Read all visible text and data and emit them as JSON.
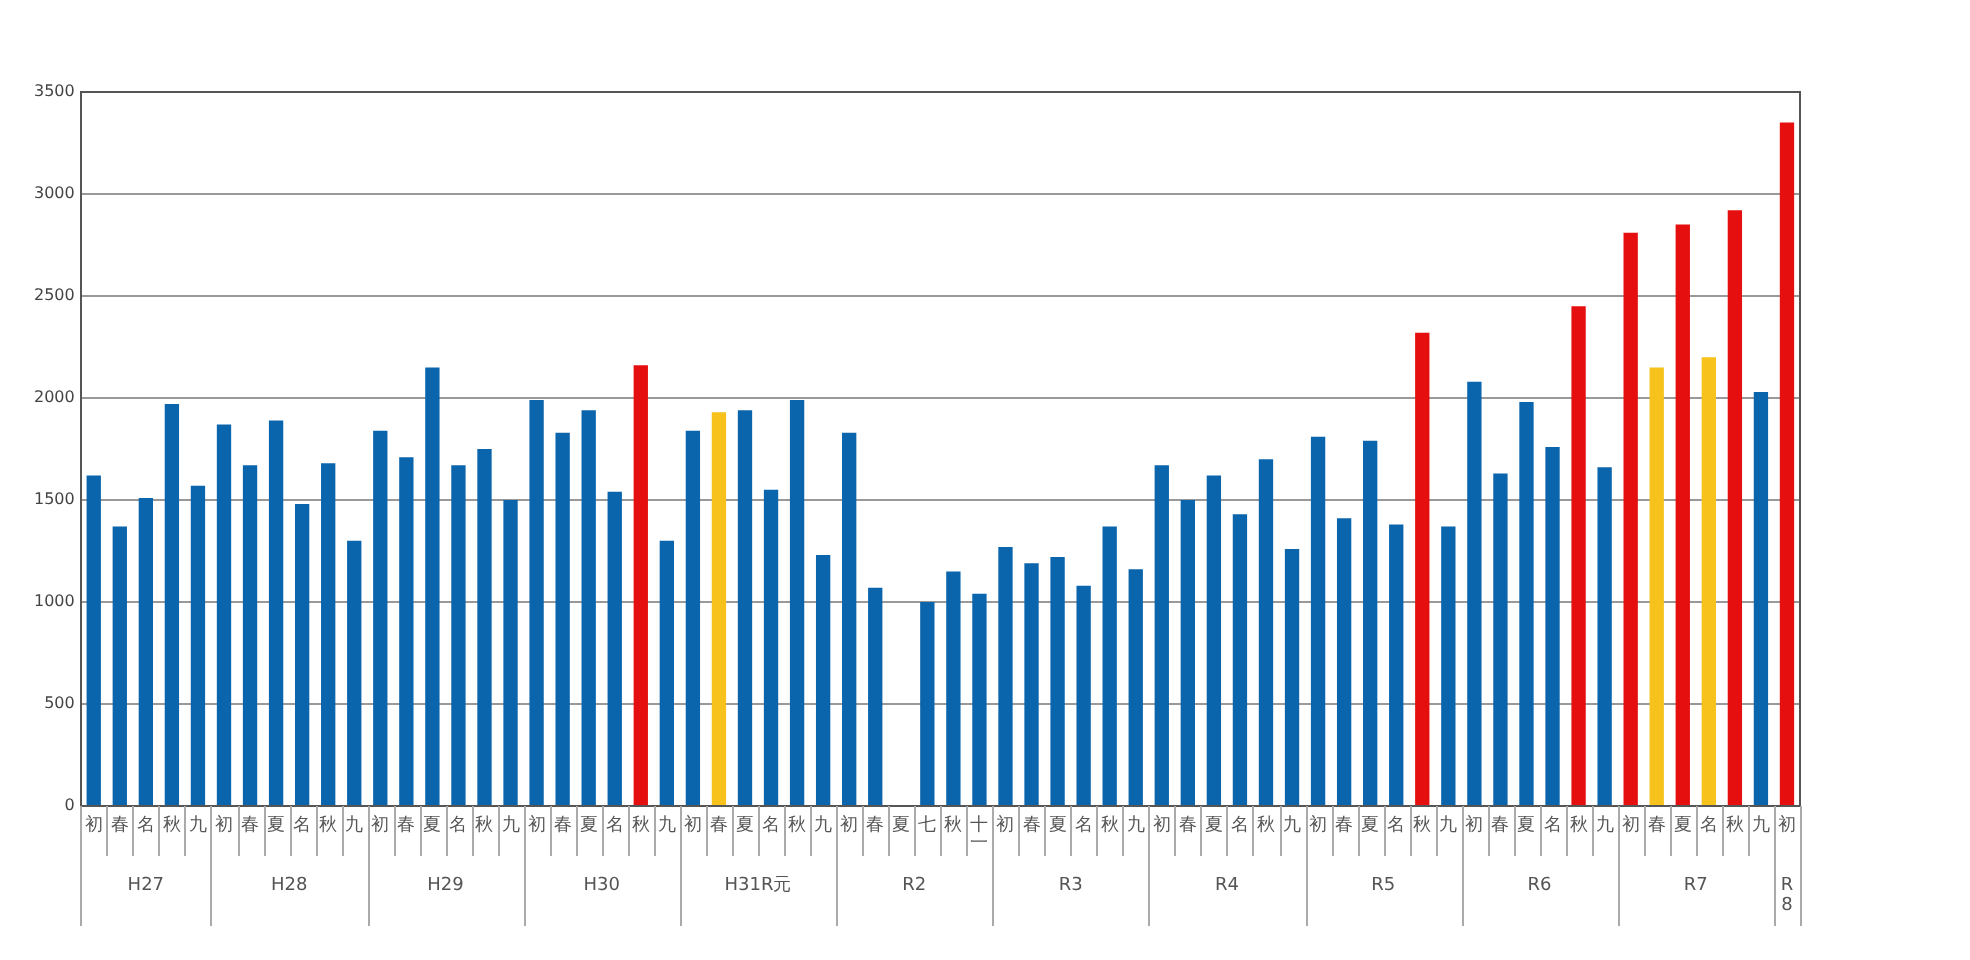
{
  "chart_data": {
    "type": "bar",
    "categories": [
      "初",
      "春",
      "名",
      "秋",
      "九",
      "初",
      "春",
      "夏",
      "名",
      "秋",
      "九",
      "初",
      "春",
      "夏",
      "名",
      "秋",
      "九",
      "初",
      "春",
      "夏",
      "名",
      "秋",
      "九",
      "初",
      "春",
      "夏",
      "名",
      "秋",
      "九",
      "初",
      "春",
      "夏",
      "七",
      "秋",
      "十一",
      "初",
      "春",
      "夏",
      "名",
      "秋",
      "九",
      "初",
      "春",
      "夏",
      "名",
      "秋",
      "九",
      "初",
      "春",
      "夏",
      "名",
      "秋",
      "九",
      "初",
      "春",
      "夏",
      "名",
      "秋",
      "九",
      "初",
      "春",
      "夏",
      "名",
      "秋",
      "九",
      "初"
    ],
    "values": [
      1620,
      1370,
      1510,
      1970,
      1570,
      1870,
      1670,
      1890,
      1480,
      1680,
      1300,
      1840,
      1710,
      2150,
      1670,
      1750,
      1500,
      1990,
      1830,
      1940,
      1540,
      2160,
      1300,
      1840,
      1930,
      1940,
      1550,
      1990,
      1230,
      1830,
      1070,
      null,
      1000,
      1150,
      1040,
      1270,
      1190,
      1220,
      1080,
      1370,
      1160,
      1670,
      1500,
      1620,
      1430,
      1700,
      1260,
      1810,
      1410,
      1790,
      1380,
      2320,
      1370,
      2080,
      1630,
      1980,
      1760,
      2450,
      1660,
      2810,
      2150,
      2850,
      2200,
      2920,
      2030,
      3350
    ],
    "colors": [
      "#0b65ad",
      "#0b65ad",
      "#0b65ad",
      "#0b65ad",
      "#0b65ad",
      "#0b65ad",
      "#0b65ad",
      "#0b65ad",
      "#0b65ad",
      "#0b65ad",
      "#0b65ad",
      "#0b65ad",
      "#0b65ad",
      "#0b65ad",
      "#0b65ad",
      "#0b65ad",
      "#0b65ad",
      "#0b65ad",
      "#0b65ad",
      "#0b65ad",
      "#0b65ad",
      "#e50f0f",
      "#0b65ad",
      "#0b65ad",
      "#f6c21b",
      "#0b65ad",
      "#0b65ad",
      "#0b65ad",
      "#0b65ad",
      "#0b65ad",
      "#0b65ad",
      "#0b65ad",
      "#0b65ad",
      "#0b65ad",
      "#0b65ad",
      "#0b65ad",
      "#0b65ad",
      "#0b65ad",
      "#0b65ad",
      "#0b65ad",
      "#0b65ad",
      "#0b65ad",
      "#0b65ad",
      "#0b65ad",
      "#0b65ad",
      "#0b65ad",
      "#0b65ad",
      "#0b65ad",
      "#0b65ad",
      "#0b65ad",
      "#0b65ad",
      "#e50f0f",
      "#0b65ad",
      "#0b65ad",
      "#0b65ad",
      "#0b65ad",
      "#0b65ad",
      "#e50f0f",
      "#0b65ad",
      "#e50f0f",
      "#f6c21b",
      "#e50f0f",
      "#f6c21b",
      "#e50f0f",
      "#0b65ad",
      "#e50f0f"
    ],
    "ylim": [
      0,
      3500
    ],
    "yticks": [
      0,
      500,
      1000,
      1500,
      2000,
      2500,
      3000,
      3500
    ],
    "grid": "y",
    "annotations": [
      "H27",
      "H28",
      "H29",
      "H30",
      "H31R元",
      "R2",
      "R3",
      "R4",
      "R5",
      "R6",
      "R7",
      "R8"
    ]
  }
}
